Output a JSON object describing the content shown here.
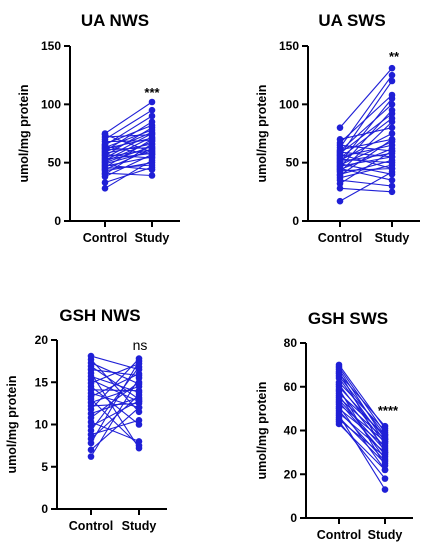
{
  "chart_data": [
    {
      "type": "paired-scatter",
      "title": "UA NWS",
      "ylabel": "umol/mg protein",
      "categories": [
        "Control",
        "Study"
      ],
      "ylim": [
        0,
        150
      ],
      "yticks": [
        0,
        50,
        100,
        150
      ],
      "annotation": "***",
      "color": "#1f1fd6",
      "pairs": [
        [
          28,
          52
        ],
        [
          33,
          46
        ],
        [
          38,
          57
        ],
        [
          40,
          66
        ],
        [
          41,
          39
        ],
        [
          43,
          50
        ],
        [
          44,
          62
        ],
        [
          45,
          48
        ],
        [
          46,
          70
        ],
        [
          47,
          55
        ],
        [
          48,
          44
        ],
        [
          49,
          60
        ],
        [
          50,
          64
        ],
        [
          51,
          68
        ],
        [
          52,
          72
        ],
        [
          53,
          58
        ],
        [
          54,
          75
        ],
        [
          55,
          61
        ],
        [
          56,
          80
        ],
        [
          57,
          54
        ],
        [
          58,
          66
        ],
        [
          59,
          76
        ],
        [
          60,
          85
        ],
        [
          61,
          63
        ],
        [
          62,
          71
        ],
        [
          63,
          78
        ],
        [
          64,
          57
        ],
        [
          65,
          90
        ],
        [
          66,
          82
        ],
        [
          68,
          69
        ],
        [
          70,
          95
        ],
        [
          72,
          74
        ],
        [
          74,
          59
        ],
        [
          75,
          102
        ]
      ]
    },
    {
      "type": "paired-scatter",
      "title": "UA SWS",
      "ylabel": "umol/mg protein",
      "categories": [
        "Control",
        "Study"
      ],
      "ylim": [
        0,
        150
      ],
      "yticks": [
        0,
        50,
        100,
        150
      ],
      "annotation": "**",
      "color": "#1f1fd6",
      "pairs": [
        [
          17,
          42
        ],
        [
          28,
          25
        ],
        [
          32,
          60
        ],
        [
          35,
          30
        ],
        [
          37,
          48
        ],
        [
          39,
          70
        ],
        [
          40,
          52
        ],
        [
          42,
          85
        ],
        [
          43,
          45
        ],
        [
          44,
          62
        ],
        [
          45,
          35
        ],
        [
          46,
          95
        ],
        [
          47,
          55
        ],
        [
          48,
          68
        ],
        [
          49,
          40
        ],
        [
          50,
          105
        ],
        [
          51,
          58
        ],
        [
          52,
          75
        ],
        [
          53,
          50
        ],
        [
          54,
          88
        ],
        [
          55,
          65
        ],
        [
          56,
          120
        ],
        [
          57,
          45
        ],
        [
          58,
          92
        ],
        [
          59,
          55
        ],
        [
          60,
          100
        ],
        [
          61,
          70
        ],
        [
          63,
          125
        ],
        [
          65,
          60
        ],
        [
          67,
          108
        ],
        [
          70,
          80
        ],
        [
          80,
          131
        ]
      ]
    },
    {
      "type": "paired-scatter",
      "title": "GSH NWS",
      "ylabel": "umol/mg protein",
      "categories": [
        "Control",
        "Study"
      ],
      "ylim": [
        0,
        20
      ],
      "yticks": [
        0,
        5,
        10,
        15,
        20
      ],
      "annotation": "ns",
      "color": "#1f1fd6",
      "pairs": [
        [
          6.2,
          15.5
        ],
        [
          7.0,
          12.0
        ],
        [
          7.8,
          17.5
        ],
        [
          8.3,
          13.5
        ],
        [
          8.8,
          10.5
        ],
        [
          9.3,
          16.8
        ],
        [
          9.8,
          12.8
        ],
        [
          10.3,
          8.0
        ],
        [
          10.8,
          15.0
        ],
        [
          11.3,
          13.2
        ],
        [
          11.8,
          17.8
        ],
        [
          12.2,
          12.5
        ],
        [
          12.6,
          14.5
        ],
        [
          13.0,
          7.5
        ],
        [
          13.3,
          16.0
        ],
        [
          13.7,
          12.0
        ],
        [
          14.1,
          14.0
        ],
        [
          14.5,
          10.0
        ],
        [
          14.9,
          17.2
        ],
        [
          15.3,
          12.7
        ],
        [
          15.7,
          13.8
        ],
        [
          16.1,
          7.2
        ],
        [
          16.5,
          15.8
        ],
        [
          16.9,
          13.0
        ],
        [
          17.3,
          14.8
        ],
        [
          17.7,
          11.5
        ],
        [
          18.1,
          16.5
        ]
      ]
    },
    {
      "type": "paired-scatter",
      "title": "GSH SWS",
      "ylabel": "umol/mg protein",
      "categories": [
        "Control",
        "Study"
      ],
      "ylim": [
        0,
        80
      ],
      "yticks": [
        0,
        20,
        40,
        60,
        80
      ],
      "annotation": "****",
      "color": "#1f1fd6",
      "pairs": [
        [
          43,
          22
        ],
        [
          44,
          18
        ],
        [
          45,
          28
        ],
        [
          46,
          25
        ],
        [
          47,
          13
        ],
        [
          48,
          30
        ],
        [
          49,
          26
        ],
        [
          50,
          33
        ],
        [
          51,
          22
        ],
        [
          52,
          35
        ],
        [
          53,
          29
        ],
        [
          54,
          31
        ],
        [
          55,
          36
        ],
        [
          56,
          27
        ],
        [
          57,
          38
        ],
        [
          58,
          32
        ],
        [
          59,
          24
        ],
        [
          60,
          37
        ],
        [
          61,
          34
        ],
        [
          62,
          40
        ],
        [
          64,
          35
        ],
        [
          65,
          38
        ],
        [
          66,
          42
        ],
        [
          67,
          30
        ],
        [
          68,
          36
        ],
        [
          69,
          39
        ],
        [
          70,
          41
        ]
      ]
    }
  ]
}
